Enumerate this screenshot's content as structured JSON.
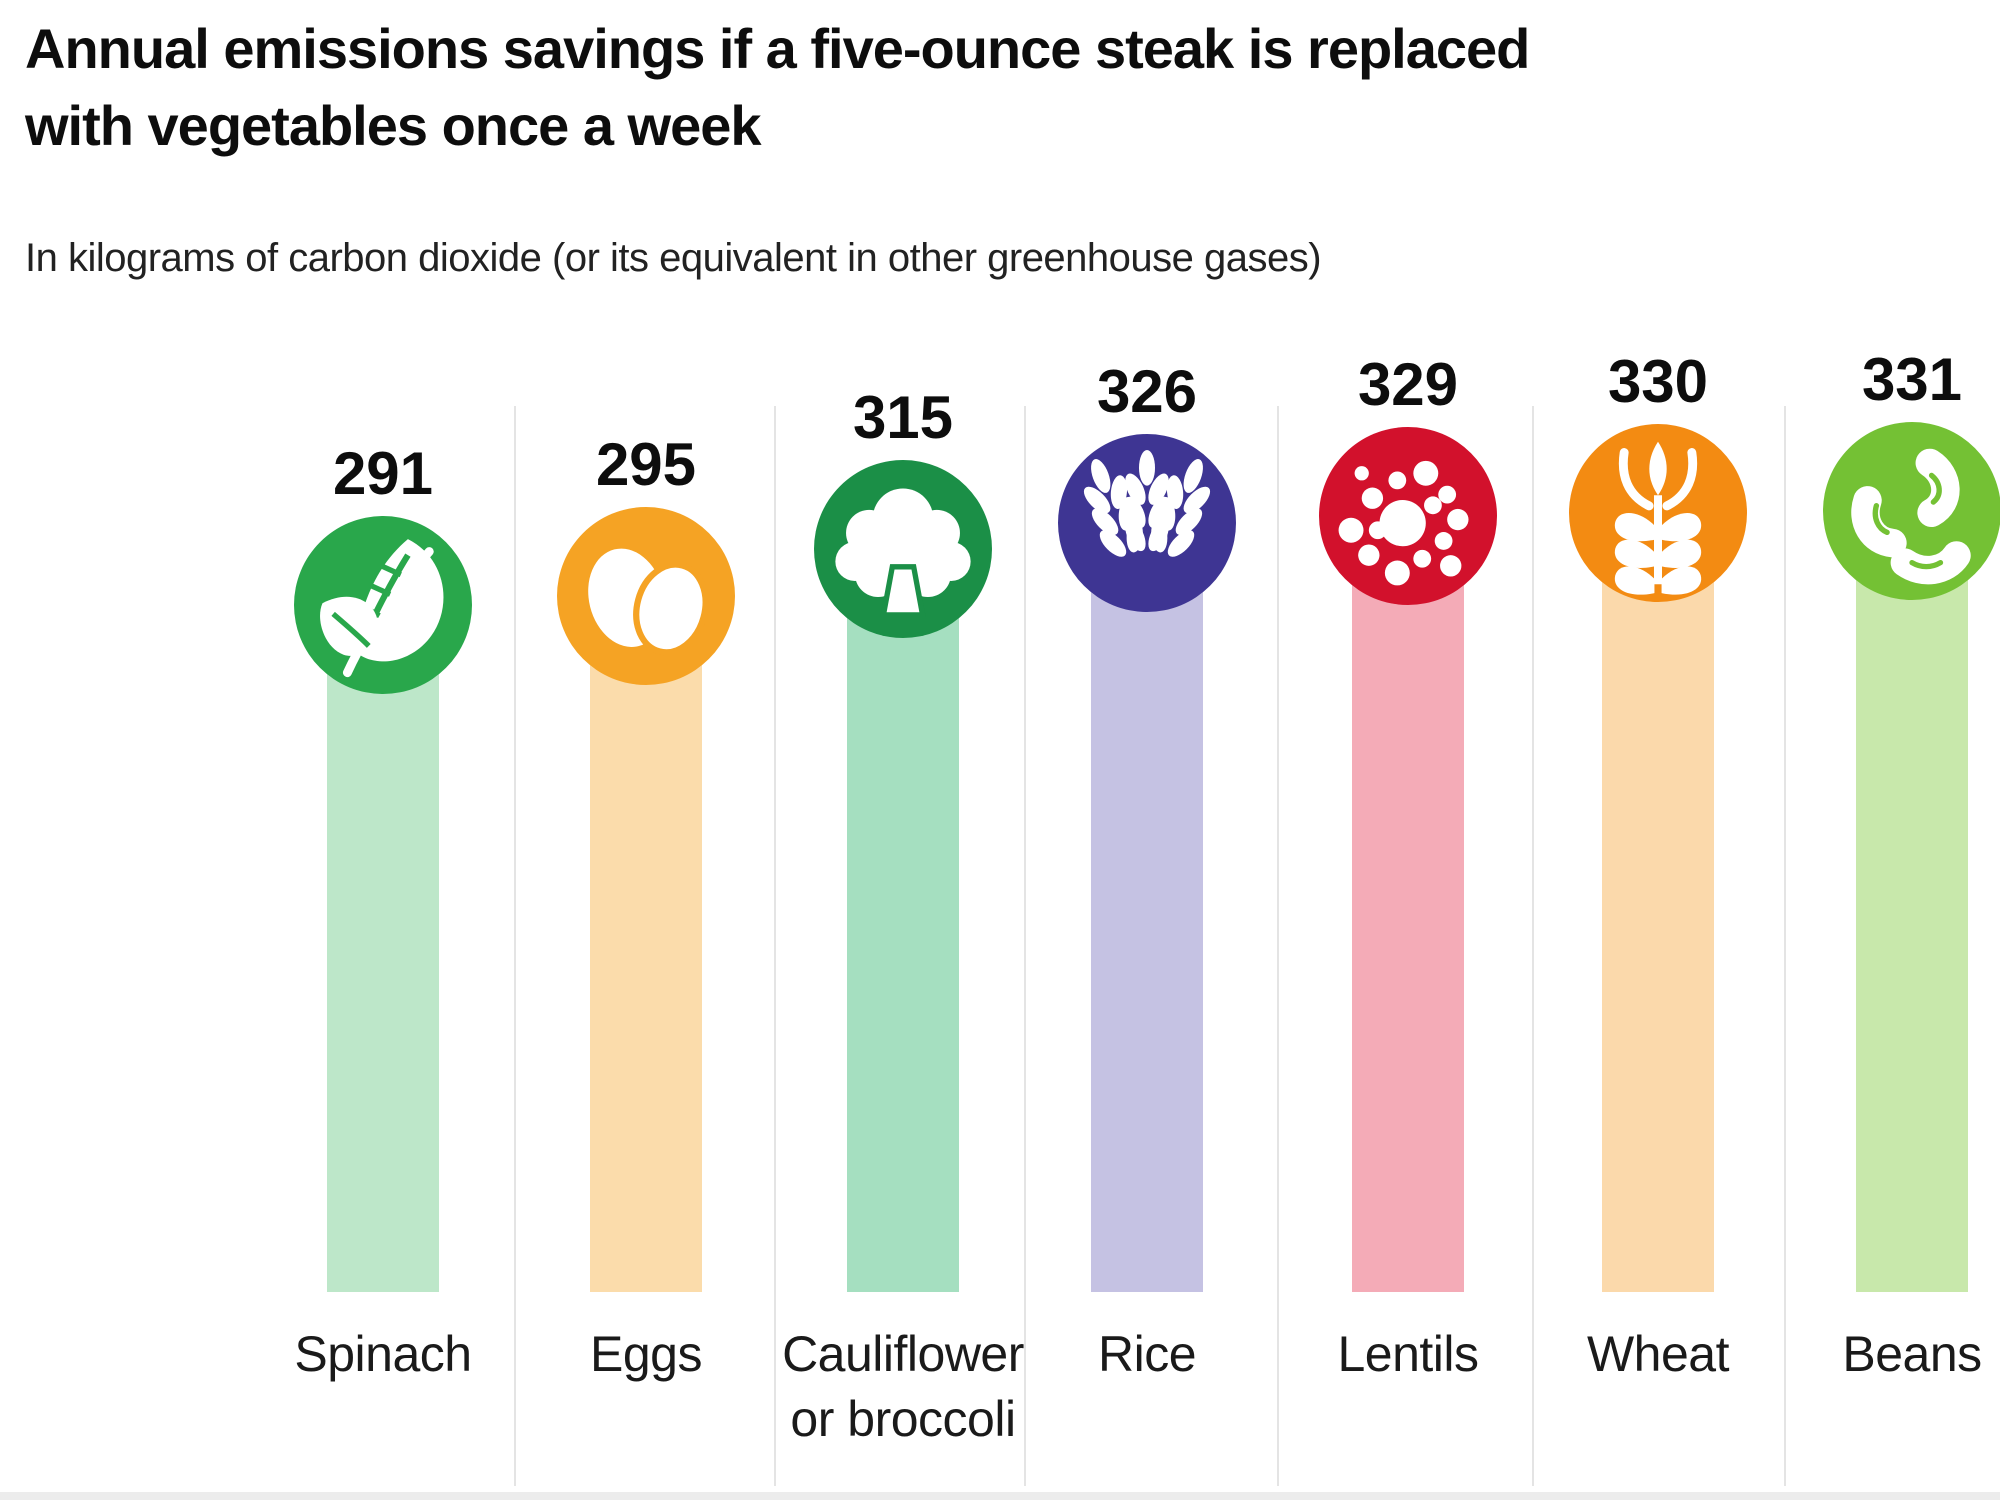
{
  "title": "Annual emissions savings if a five-ounce steak is replaced with vegetables once a week",
  "subtitle": "In kilograms of carbon dioxide (or its equivalent in other greenhouse gases)",
  "chart_data": {
    "type": "bar",
    "title": "Annual emissions savings if a five-ounce steak is replaced with vegetables once a week",
    "subtitle_unit_note": "In kilograms of carbon dioxide (or its equivalent in other greenhouse gases)",
    "categories": [
      "Spinach",
      "Eggs",
      "Cauliflower or broccoli",
      "Rice",
      "Lentils",
      "Wheat",
      "Beans"
    ],
    "values": [
      291,
      295,
      315,
      326,
      329,
      330,
      331
    ],
    "ylim": [
      0,
      331
    ],
    "value_labels_position": "above circular food icons at bar tops",
    "grid": "light vertical separators between categories",
    "items": [
      {
        "label": "Spinach",
        "value": 291,
        "icon": "leaf-icon",
        "circle_color": "#29a74b",
        "bar_color": "#bde7c9"
      },
      {
        "label": "Eggs",
        "value": 295,
        "icon": "eggs-icon",
        "circle_color": "#f5a324",
        "bar_color": "#fbdcab"
      },
      {
        "label": "Cauliflower or broccoli",
        "value": 315,
        "icon": "broccoli-icon",
        "circle_color": "#1b8f47",
        "bar_color": "#a5dfc0"
      },
      {
        "label": "Rice",
        "value": 326,
        "icon": "rice-icon",
        "circle_color": "#3e3593",
        "bar_color": "#c5c2e3"
      },
      {
        "label": "Lentils",
        "value": 329,
        "icon": "lentils-icon",
        "circle_color": "#d2112c",
        "bar_color": "#f4abb7"
      },
      {
        "label": "Wheat",
        "value": 330,
        "icon": "wheat-icon",
        "circle_color": "#f38b12",
        "bar_color": "#fbd9ab"
      },
      {
        "label": "Beans",
        "value": 331,
        "icon": "beans-icon",
        "circle_color": "#74c134",
        "bar_color": "#c8e8ab"
      }
    ]
  }
}
